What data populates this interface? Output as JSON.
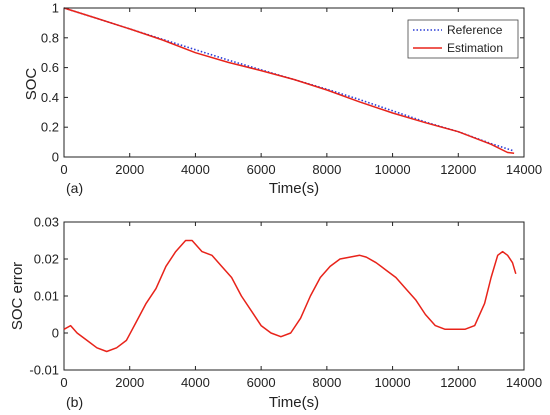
{
  "chart_data": [
    {
      "type": "line",
      "panel_label": "(a)",
      "xlabel": "Time(s)",
      "ylabel": "SOC",
      "xlim": [
        0,
        14000
      ],
      "ylim": [
        0,
        1
      ],
      "xticks": [
        0,
        2000,
        4000,
        6000,
        8000,
        10000,
        12000,
        14000
      ],
      "yticks": [
        0,
        0.2,
        0.4,
        0.6,
        0.8,
        1
      ],
      "ytick_labels": [
        "0",
        "0.2",
        "0.4",
        "0.6",
        "0.8",
        "1"
      ],
      "grid": false,
      "legend_position": "top-right",
      "series": [
        {
          "name": "Reference",
          "color": "#2b3dd6",
          "style": "dotted",
          "x": [
            0,
            1000,
            2000,
            3000,
            4000,
            5000,
            6000,
            7000,
            8000,
            9000,
            10000,
            11000,
            12000,
            13000,
            13700
          ],
          "y": [
            1.0,
            0.93,
            0.86,
            0.79,
            0.72,
            0.65,
            0.585,
            0.52,
            0.455,
            0.385,
            0.31,
            0.235,
            0.17,
            0.09,
            0.04
          ]
        },
        {
          "name": "Estimation",
          "color": "#e8231a",
          "style": "solid",
          "x": [
            0,
            1000,
            2000,
            3000,
            4000,
            5000,
            6000,
            7000,
            8000,
            9000,
            10000,
            11000,
            12000,
            13000,
            13500,
            13700
          ],
          "y": [
            1.0,
            0.93,
            0.86,
            0.785,
            0.7,
            0.635,
            0.58,
            0.52,
            0.45,
            0.37,
            0.295,
            0.23,
            0.17,
            0.085,
            0.03,
            0.025
          ]
        }
      ]
    },
    {
      "type": "line",
      "panel_label": "(b)",
      "xlabel": "Time(s)",
      "ylabel": "SOC error",
      "xlim": [
        0,
        14000
      ],
      "ylim": [
        -0.01,
        0.03
      ],
      "xticks": [
        0,
        2000,
        4000,
        6000,
        8000,
        10000,
        12000,
        14000
      ],
      "yticks": [
        -0.01,
        0,
        0.01,
        0.02,
        0.03
      ],
      "ytick_labels": [
        "-0.01",
        "0",
        "0.01",
        "0.02",
        "0.03"
      ],
      "grid": false,
      "series": [
        {
          "name": "",
          "color": "#e8231a",
          "style": "solid",
          "x": [
            0,
            200,
            400,
            700,
            1000,
            1300,
            1600,
            1900,
            2200,
            2500,
            2800,
            3100,
            3400,
            3700,
            3900,
            4200,
            4500,
            4800,
            5100,
            5400,
            5700,
            6000,
            6300,
            6600,
            6900,
            7200,
            7500,
            7800,
            8100,
            8400,
            8700,
            9000,
            9200,
            9500,
            9800,
            10100,
            10400,
            10700,
            11000,
            11300,
            11600,
            11900,
            12200,
            12500,
            12800,
            13000,
            13200,
            13350,
            13500,
            13650,
            13750
          ],
          "y": [
            0.001,
            0.002,
            0.0,
            -0.002,
            -0.004,
            -0.005,
            -0.004,
            -0.002,
            0.003,
            0.008,
            0.012,
            0.018,
            0.022,
            0.025,
            0.025,
            0.022,
            0.021,
            0.018,
            0.015,
            0.01,
            0.006,
            0.002,
            0.0,
            -0.001,
            0.0,
            0.004,
            0.01,
            0.015,
            0.018,
            0.02,
            0.0205,
            0.021,
            0.0205,
            0.019,
            0.017,
            0.015,
            0.012,
            0.009,
            0.005,
            0.002,
            0.001,
            0.001,
            0.001,
            0.002,
            0.008,
            0.015,
            0.021,
            0.022,
            0.021,
            0.019,
            0.016
          ]
        }
      ]
    }
  ]
}
